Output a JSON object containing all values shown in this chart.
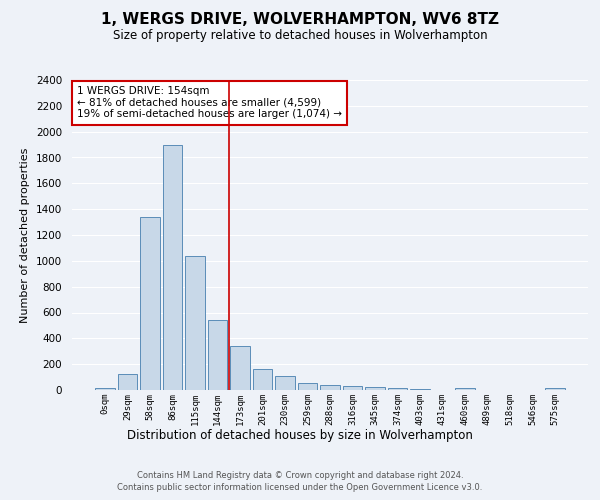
{
  "title1": "1, WERGS DRIVE, WOLVERHAMPTON, WV6 8TZ",
  "title2": "Size of property relative to detached houses in Wolverhampton",
  "xlabel": "Distribution of detached houses by size in Wolverhampton",
  "ylabel": "Number of detached properties",
  "categories": [
    "0sqm",
    "29sqm",
    "58sqm",
    "86sqm",
    "115sqm",
    "144sqm",
    "173sqm",
    "201sqm",
    "230sqm",
    "259sqm",
    "288sqm",
    "316sqm",
    "345sqm",
    "374sqm",
    "403sqm",
    "431sqm",
    "460sqm",
    "489sqm",
    "518sqm",
    "546sqm",
    "575sqm"
  ],
  "values": [
    15,
    125,
    1340,
    1900,
    1040,
    540,
    340,
    165,
    110,
    55,
    35,
    30,
    20,
    15,
    10,
    0,
    15,
    0,
    0,
    0,
    15
  ],
  "bar_color": "#c8d8e8",
  "bar_edge_color": "#5b8db8",
  "bg_color": "#eef2f8",
  "grid_color": "#ffffff",
  "vline_x": 5.5,
  "vline_color": "#cc0000",
  "annotation_text": "1 WERGS DRIVE: 154sqm\n← 81% of detached houses are smaller (4,599)\n19% of semi-detached houses are larger (1,074) →",
  "annotation_box_color": "#ffffff",
  "annotation_box_edge": "#cc0000",
  "ylim": [
    0,
    2400
  ],
  "yticks": [
    0,
    200,
    400,
    600,
    800,
    1000,
    1200,
    1400,
    1600,
    1800,
    2000,
    2200,
    2400
  ],
  "footer1": "Contains HM Land Registry data © Crown copyright and database right 2024.",
  "footer2": "Contains public sector information licensed under the Open Government Licence v3.0.",
  "fig_bg": "#eef2f8"
}
